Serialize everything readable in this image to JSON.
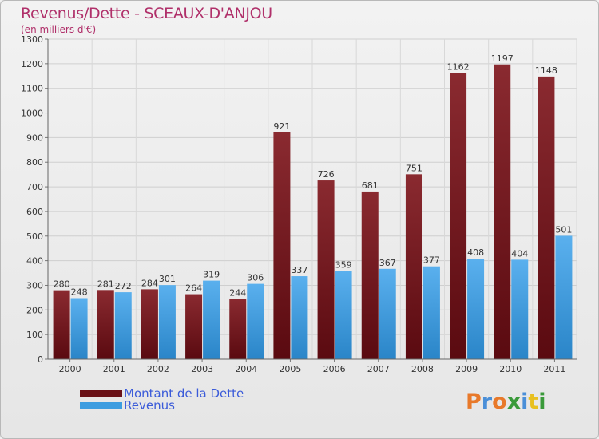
{
  "title": "Revenus/Dette - SCEAUX-D'ANJOU",
  "subtitle": "(en milliers d'€)",
  "brand": {
    "text": "Proxiti",
    "letter_colors": [
      "#e8792a",
      "#4a8fd8",
      "#e8792a",
      "#3a9a3a",
      "#4a8fd8",
      "#e8c020",
      "#3a9a3a"
    ]
  },
  "chart_data": {
    "type": "bar",
    "categories": [
      "2000",
      "2001",
      "2002",
      "2003",
      "2004",
      "2005",
      "2006",
      "2007",
      "2008",
      "2009",
      "2010",
      "2011"
    ],
    "series": [
      {
        "name": "Montant de la Dette",
        "color": "#7a1a1f",
        "values": [
          280,
          281,
          284,
          264,
          244,
          921,
          726,
          681,
          751,
          1162,
          1197,
          1148
        ]
      },
      {
        "name": "Revenus",
        "color": "#3d9de0",
        "values": [
          248,
          272,
          301,
          319,
          306,
          337,
          359,
          367,
          377,
          408,
          404,
          501
        ]
      }
    ],
    "ylim": [
      0,
      1300
    ],
    "yticks": [
      0,
      100,
      200,
      300,
      400,
      500,
      600,
      700,
      800,
      900,
      1000,
      1100,
      1200,
      1300
    ],
    "grid": true,
    "legend": "bottom-left"
  }
}
